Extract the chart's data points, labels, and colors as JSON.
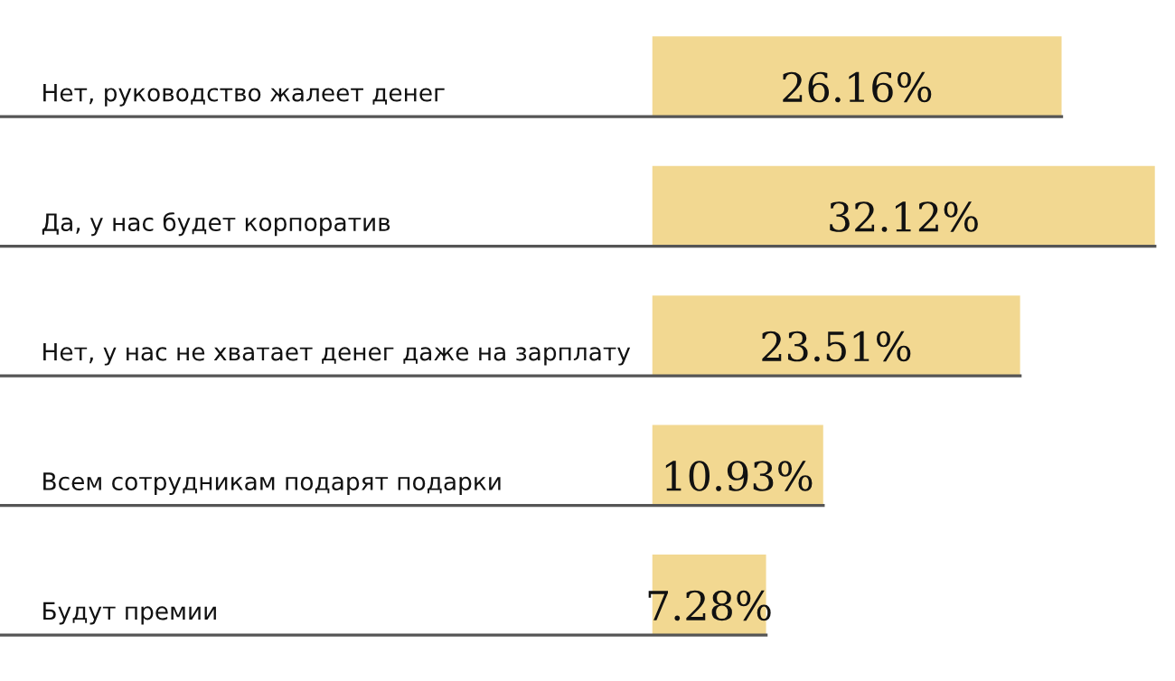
{
  "chart_data": {
    "type": "bar",
    "orientation": "horizontal",
    "categories": [
      "Нет, руководство жалеет денег",
      "Да, у нас будет корпоратив",
      "Нет, у нас не хватает денег даже на зарплату",
      "Всем сотрудникам подарят подарки",
      "Будут премии"
    ],
    "values": [
      26.16,
      32.12,
      23.51,
      10.93,
      7.28
    ],
    "value_labels": [
      "26.16%",
      "32.12%",
      "23.51%",
      "10.93%",
      "7.28%"
    ],
    "color": "#f2d891"
  }
}
